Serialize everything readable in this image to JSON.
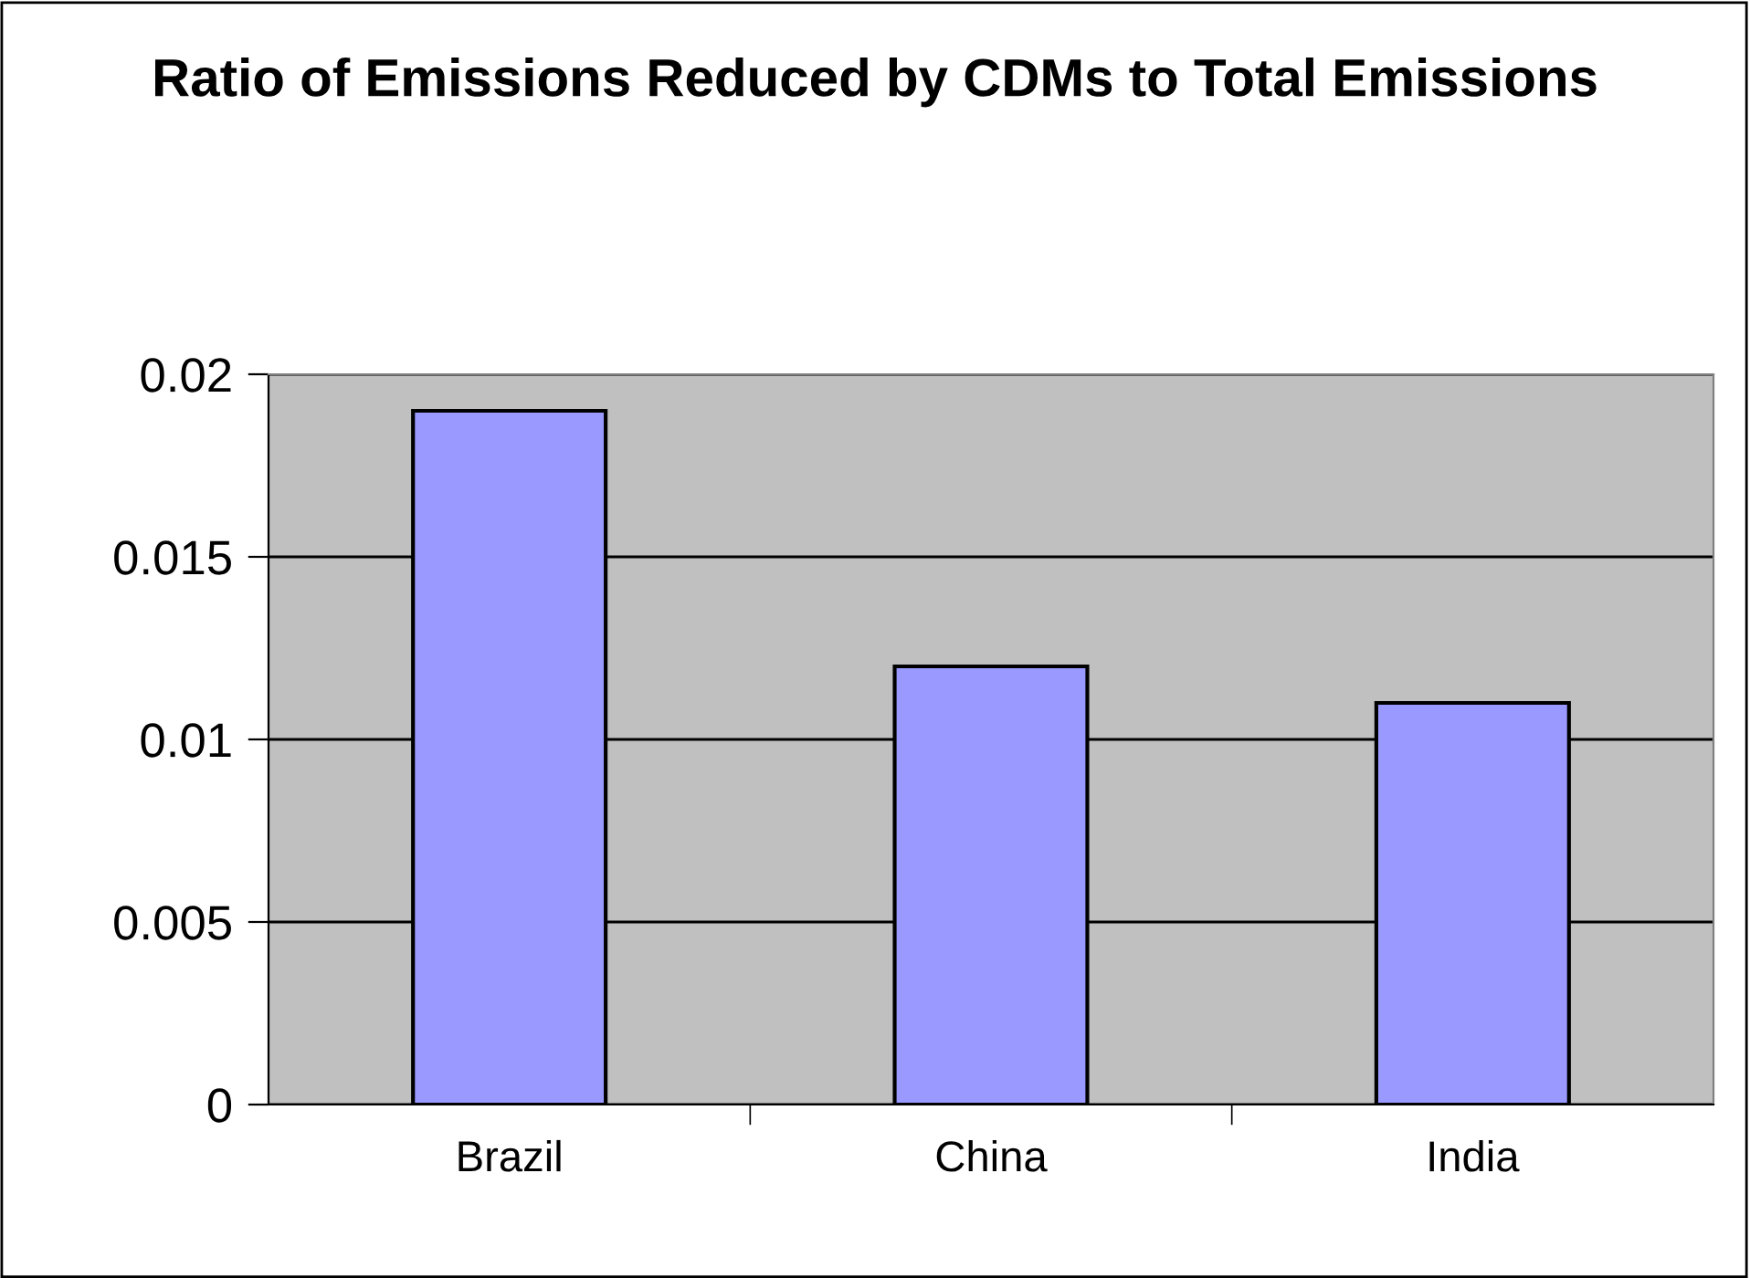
{
  "chart_data": {
    "type": "bar",
    "title": "Ratio of Emissions Reduced by CDMs to Total Emissions",
    "categories": [
      "Brazil",
      "China",
      "India"
    ],
    "values": [
      0.019,
      0.012,
      0.011
    ],
    "color": "#9999ff",
    "ylim": [
      0,
      0.02
    ],
    "yticks": [
      0,
      0.005,
      0.01,
      0.015,
      0.02
    ],
    "grid": "y",
    "legend": false
  }
}
